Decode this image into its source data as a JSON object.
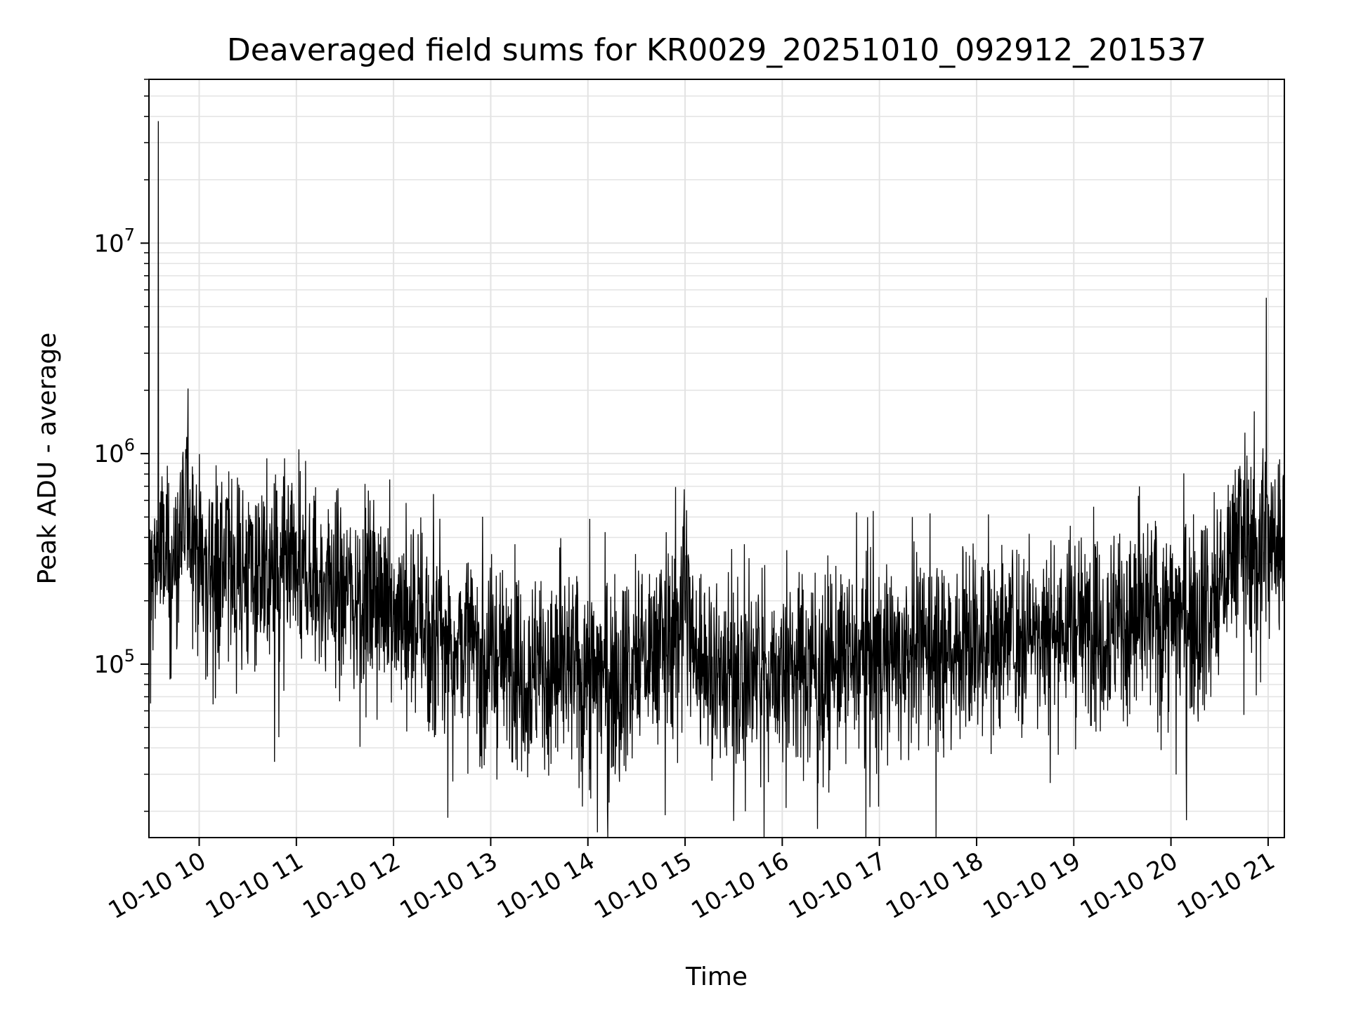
{
  "chart_data": {
    "type": "line",
    "title": "Deaveraged field sums for KR0029_20251010_092912_201537",
    "xlabel": "Time",
    "ylabel": "Peak ADU - average",
    "yscale": "log",
    "ylim": [
      15000,
      60000000
    ],
    "xlim_hours": [
      9.483,
      21.167
    ],
    "grid": true,
    "line_color": "#000000",
    "x_ticks": [
      {
        "hour": 10,
        "label": "10-10 10"
      },
      {
        "hour": 11,
        "label": "10-10 11"
      },
      {
        "hour": 12,
        "label": "10-10 12"
      },
      {
        "hour": 13,
        "label": "10-10 13"
      },
      {
        "hour": 14,
        "label": "10-10 14"
      },
      {
        "hour": 15,
        "label": "10-10 15"
      },
      {
        "hour": 16,
        "label": "10-10 16"
      },
      {
        "hour": 17,
        "label": "10-10 17"
      },
      {
        "hour": 18,
        "label": "10-10 18"
      },
      {
        "hour": 19,
        "label": "10-10 19"
      },
      {
        "hour": 20,
        "label": "10-10 20"
      },
      {
        "hour": 21,
        "label": "10-10 21"
      }
    ],
    "y_ticks": [
      {
        "value": 100000,
        "base": "10",
        "exp": "5"
      },
      {
        "value": 1000000,
        "base": "10",
        "exp": "6"
      },
      {
        "value": 10000000,
        "base": "10",
        "exp": "7"
      }
    ],
    "series": [
      {
        "name": "Peak ADU - average",
        "trend": {
          "x_hours": [
            9.49,
            9.55,
            9.6,
            9.7,
            9.8,
            9.9,
            10.0,
            10.5,
            11.0,
            11.5,
            12.0,
            12.5,
            13.0,
            13.5,
            14.0,
            14.5,
            14.85,
            15.0,
            15.1,
            15.5,
            16.0,
            16.5,
            17.0,
            17.5,
            18.0,
            18.5,
            19.0,
            19.5,
            20.0,
            20.5,
            20.65,
            21.0,
            21.17
          ],
          "y_median": [
            250000,
            300000,
            330000,
            290000,
            330000,
            560000,
            330000,
            270000,
            250000,
            230000,
            190000,
            140000,
            110000,
            95000,
            90000,
            100000,
            130000,
            240000,
            110000,
            90000,
            95000,
            100000,
            110000,
            120000,
            130000,
            145000,
            150000,
            160000,
            170000,
            200000,
            380000,
            360000,
            380000
          ],
          "spread_decades": 0.55
        },
        "spikes": [
          {
            "hour": 9.58,
            "value": 38000000
          },
          {
            "hour": 9.5,
            "value": 65000
          },
          {
            "hour": 9.87,
            "value": 1200000
          },
          {
            "hour": 9.86,
            "value": 1050000
          },
          {
            "hour": 10.82,
            "value": 45000
          },
          {
            "hour": 12.42,
            "value": 45000
          },
          {
            "hour": 13.38,
            "value": 29000
          },
          {
            "hour": 14.03,
            "value": 23000
          },
          {
            "hour": 14.22,
            "value": 22000
          },
          {
            "hour": 14.02,
            "value": 490000
          },
          {
            "hour": 15.5,
            "value": 18000
          },
          {
            "hour": 15.62,
            "value": 20000
          },
          {
            "hour": 15.78,
            "value": 26000
          },
          {
            "hour": 16.42,
            "value": 26000
          },
          {
            "hour": 17.34,
            "value": 500000
          },
          {
            "hour": 17.52,
            "value": 520000
          },
          {
            "hour": 17.66,
            "value": 36000
          },
          {
            "hour": 20.98,
            "value": 5500000
          },
          {
            "hour": 20.72,
            "value": 760000
          },
          {
            "hour": 21.05,
            "value": 700000
          }
        ]
      }
    ]
  }
}
